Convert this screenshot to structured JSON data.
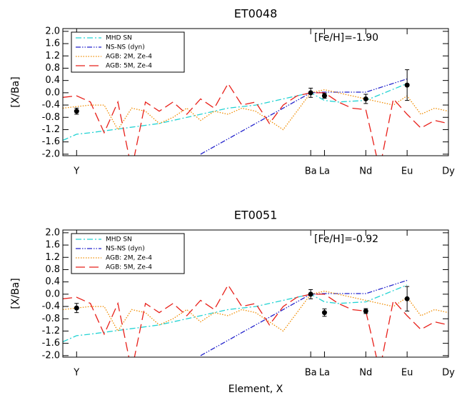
{
  "chart_data": [
    {
      "type": "line",
      "title": "ET0048",
      "ylabel": "[X/Ba]",
      "annotation": "[Fe/H]=-1.90",
      "xlim": [
        38,
        66
      ],
      "ylim": [
        -2.05,
        2.09
      ],
      "legend": "upper left",
      "xticks": [
        {
          "value": 39,
          "label": "Y"
        },
        {
          "value": 56,
          "label": "Ba"
        },
        {
          "value": 57,
          "label": "La"
        },
        {
          "value": 60,
          "label": "Nd"
        },
        {
          "value": 63,
          "label": "Eu"
        },
        {
          "value": 66,
          "label": "Dy"
        }
      ],
      "yticks": [
        {
          "value": 2,
          "label": "2.0"
        },
        {
          "value": 1.6,
          "label": "1.6"
        },
        {
          "value": 1.2,
          "label": "1.2"
        },
        {
          "value": 0.8,
          "label": "0.8"
        },
        {
          "value": 0.4,
          "label": "0.4"
        },
        {
          "value": 0,
          "label": "0.0"
        },
        {
          "value": -0.4,
          "label": "-0.4"
        },
        {
          "value": -0.8,
          "label": "-0.8"
        },
        {
          "value": -1.2,
          "label": "-1.2"
        },
        {
          "value": -1.6,
          "label": "-1.6"
        },
        {
          "value": -2,
          "label": "-2.0"
        }
      ],
      "series": [
        {
          "name": "MHD SN",
          "color": "#22d3d3",
          "linestyle": "dashdot",
          "x": [
            38,
            39,
            40,
            45,
            50,
            52,
            54,
            56,
            57,
            58,
            60,
            63
          ],
          "values": [
            -1.55,
            -1.35,
            -1.3,
            -1.0,
            -0.5,
            -0.4,
            -0.2,
            0.0,
            -0.25,
            -0.3,
            -0.25,
            0.3
          ]
        },
        {
          "name": "NS-NS (dyn)",
          "color": "#2222cc",
          "linestyle": "dashdotdot",
          "x": [
            48,
            56,
            57,
            60,
            63
          ],
          "values": [
            -2.0,
            0.0,
            0.02,
            0.02,
            0.45
          ]
        },
        {
          "name": "AGB: 2M, Ze-4",
          "color": "#f08c00",
          "linestyle": "dotted",
          "x": [
            38,
            39,
            40,
            41,
            42,
            43,
            44,
            45,
            46,
            47,
            48,
            49,
            50,
            51,
            52,
            53,
            54,
            55,
            56,
            57,
            58,
            59,
            60,
            61,
            62,
            63,
            64,
            65,
            66
          ],
          "values": [
            -0.5,
            -0.45,
            -0.4,
            -0.4,
            -1.2,
            -0.5,
            -0.6,
            -1.0,
            -0.8,
            -0.5,
            -0.9,
            -0.6,
            -0.7,
            -0.5,
            -0.6,
            -0.9,
            -1.2,
            -0.6,
            0.0,
            0.1,
            0.0,
            -0.1,
            -0.2,
            -0.3,
            -0.4,
            -0.1,
            -0.7,
            -0.5,
            -0.6
          ]
        },
        {
          "name": "AGB: 5M, Ze-4",
          "color": "#e8201a",
          "linestyle": "dashed",
          "x": [
            38,
            39,
            40,
            41,
            42,
            43,
            44,
            45,
            46,
            47,
            48,
            49,
            50,
            51,
            52,
            53,
            54,
            55,
            56,
            57,
            58,
            59,
            60,
            61,
            62,
            63,
            64,
            65,
            66
          ],
          "values": [
            -0.15,
            -0.1,
            -0.3,
            -1.3,
            -0.3,
            -2.5,
            -0.3,
            -0.6,
            -0.3,
            -0.7,
            -0.2,
            -0.5,
            0.3,
            -0.4,
            -0.3,
            -1.0,
            -0.4,
            -0.1,
            0.0,
            0.0,
            -0.3,
            -0.5,
            -0.55,
            -2.5,
            -0.2,
            -0.7,
            -1.15,
            -0.9,
            -1.0
          ]
        }
      ],
      "points": {
        "color": "#000000",
        "x": [
          39,
          56,
          57,
          60,
          63
        ],
        "values": [
          -0.6,
          0.0,
          -0.1,
          -0.2,
          0.25
        ],
        "errors": [
          0.1,
          0.15,
          0.08,
          0.15,
          0.5
        ]
      }
    },
    {
      "type": "line",
      "title": "ET0051",
      "ylabel": "[X/Ba]",
      "xlabel": "Element, X",
      "annotation": "[Fe/H]=-0.92",
      "xlim": [
        38,
        66
      ],
      "ylim": [
        -2.05,
        2.09
      ],
      "legend": "upper left",
      "xticks": [
        {
          "value": 39,
          "label": "Y"
        },
        {
          "value": 56,
          "label": "Ba"
        },
        {
          "value": 57,
          "label": "La"
        },
        {
          "value": 60,
          "label": "Nd"
        },
        {
          "value": 63,
          "label": "Eu"
        },
        {
          "value": 66,
          "label": "Dy"
        }
      ],
      "yticks": [
        {
          "value": 2,
          "label": "2.0"
        },
        {
          "value": 1.6,
          "label": "1.6"
        },
        {
          "value": 1.2,
          "label": "1.2"
        },
        {
          "value": 0.8,
          "label": "0.8"
        },
        {
          "value": 0.4,
          "label": "0.4"
        },
        {
          "value": 0,
          "label": "0.0"
        },
        {
          "value": -0.4,
          "label": "-0.4"
        },
        {
          "value": -0.8,
          "label": "-0.8"
        },
        {
          "value": -1.2,
          "label": "-1.2"
        },
        {
          "value": -1.6,
          "label": "-1.6"
        },
        {
          "value": -2,
          "label": "-2.0"
        }
      ],
      "series": [
        {
          "name": "MHD SN",
          "color": "#22d3d3",
          "linestyle": "dashdot",
          "x": [
            38,
            39,
            40,
            45,
            50,
            52,
            54,
            56,
            57,
            58,
            60,
            63
          ],
          "values": [
            -1.55,
            -1.35,
            -1.3,
            -1.0,
            -0.5,
            -0.4,
            -0.2,
            0.0,
            -0.25,
            -0.3,
            -0.25,
            0.3
          ]
        },
        {
          "name": "NS-NS (dyn)",
          "color": "#2222cc",
          "linestyle": "dashdotdot",
          "x": [
            48,
            56,
            57,
            60,
            63
          ],
          "values": [
            -2.0,
            0.0,
            0.02,
            0.02,
            0.45
          ]
        },
        {
          "name": "AGB: 2M, Ze-4",
          "color": "#f08c00",
          "linestyle": "dotted",
          "x": [
            38,
            39,
            40,
            41,
            42,
            43,
            44,
            45,
            46,
            47,
            48,
            49,
            50,
            51,
            52,
            53,
            54,
            55,
            56,
            57,
            58,
            59,
            60,
            61,
            62,
            63,
            64,
            65,
            66
          ],
          "values": [
            -0.5,
            -0.45,
            -0.4,
            -0.4,
            -1.2,
            -0.5,
            -0.6,
            -1.0,
            -0.8,
            -0.5,
            -0.9,
            -0.6,
            -0.7,
            -0.5,
            -0.6,
            -0.9,
            -1.2,
            -0.6,
            0.0,
            0.1,
            0.0,
            -0.1,
            -0.2,
            -0.3,
            -0.4,
            -0.1,
            -0.7,
            -0.5,
            -0.6
          ]
        },
        {
          "name": "AGB: 5M, Ze-4",
          "color": "#e8201a",
          "linestyle": "dashed",
          "x": [
            38,
            39,
            40,
            41,
            42,
            43,
            44,
            45,
            46,
            47,
            48,
            49,
            50,
            51,
            52,
            53,
            54,
            55,
            56,
            57,
            58,
            59,
            60,
            61,
            62,
            63,
            64,
            65,
            66
          ],
          "values": [
            -0.15,
            -0.1,
            -0.3,
            -1.3,
            -0.3,
            -2.5,
            -0.3,
            -0.6,
            -0.3,
            -0.7,
            -0.2,
            -0.5,
            0.3,
            -0.4,
            -0.3,
            -1.0,
            -0.4,
            -0.1,
            0.0,
            0.0,
            -0.3,
            -0.5,
            -0.55,
            -2.5,
            -0.2,
            -0.7,
            -1.15,
            -0.9,
            -1.0
          ]
        }
      ],
      "points": {
        "color": "#000000",
        "x": [
          39,
          56,
          57,
          60,
          63
        ],
        "values": [
          -0.45,
          0.0,
          -0.6,
          -0.55,
          -0.15
        ],
        "errors": [
          0.15,
          0.15,
          0.12,
          0.08,
          0.4
        ]
      }
    }
  ]
}
